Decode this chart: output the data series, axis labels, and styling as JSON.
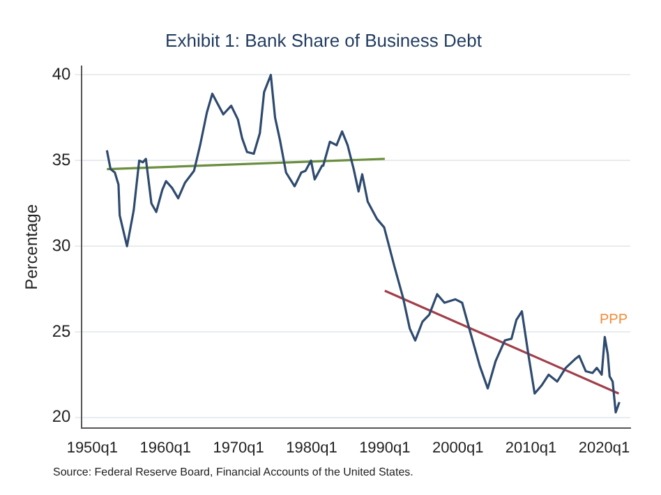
{
  "chart_data": {
    "type": "line",
    "title": "Exhibit 1: Bank Share of Business Debt",
    "ylabel": "Percentage",
    "xlim": [
      "1948-08",
      "2023-08"
    ],
    "xticks": [
      {
        "value": "1950-01",
        "label": "1950q1"
      },
      {
        "value": "1960-01",
        "label": "1960q1"
      },
      {
        "value": "1970-01",
        "label": "1970q1"
      },
      {
        "value": "1980-01",
        "label": "1980q1"
      },
      {
        "value": "1990-01",
        "label": "1990q1"
      },
      {
        "value": "2000-01",
        "label": "2000q1"
      },
      {
        "value": "2010-01",
        "label": "2010q1"
      },
      {
        "value": "2020-01",
        "label": "2020q1"
      }
    ],
    "ylim": [
      19.4,
      40.5
    ],
    "yticks": [
      20,
      25,
      30,
      35,
      40
    ],
    "grid": "y",
    "legend": false,
    "marker": "none",
    "line_style": "solid",
    "series": [
      {
        "color": "#2e4a6e",
        "x": [
          "1952-01",
          "1952-07",
          "1953-02",
          "1953-08",
          "1953-10",
          "1954-10",
          "1955-09",
          "1956-06",
          "1956-12",
          "1957-05",
          "1958-02",
          "1958-10",
          "1959-08",
          "1960-02",
          "1960-12",
          "1961-10",
          "1962-09",
          "1963-12",
          "1964-10",
          "1965-09",
          "1966-06",
          "1967-03",
          "1967-12",
          "1969-01",
          "1969-12",
          "1970-07",
          "1971-03",
          "1972-02",
          "1972-12",
          "1973-07",
          "1974-06",
          "1975-01",
          "1975-09",
          "1976-07",
          "1977-09",
          "1978-08",
          "1979-03",
          "1979-12",
          "1980-06",
          "1981-06",
          "1981-08",
          "1982-07",
          "1983-06",
          "1984-03",
          "1984-12",
          "1985-10",
          "1986-06",
          "1986-12",
          "1987-09",
          "1988-12",
          "1989-12",
          "1991-05",
          "1992-07",
          "1993-06",
          "1994-03",
          "1995-03",
          "1996-02",
          "1997-03",
          "1998-03",
          "1999-09",
          "2000-08",
          "2001-10",
          "2003-01",
          "2004-02",
          "2005-03",
          "2006-06",
          "2007-05",
          "2008-01",
          "2008-10",
          "2009-09",
          "2010-07",
          "2011-07",
          "2012-06",
          "2013-08",
          "2014-10",
          "2016-01",
          "2016-08",
          "2017-07",
          "2018-06",
          "2019-01",
          "2019-09",
          "2020-02",
          "2020-07",
          "2020-10",
          "2021-03",
          "2021-08",
          "2022-02"
        ],
        "values": [
          35.6,
          34.5,
          34.3,
          33.6,
          31.8,
          30.0,
          32.1,
          35.0,
          34.9,
          35.1,
          32.5,
          32.0,
          33.3,
          33.8,
          33.4,
          32.8,
          33.7,
          34.4,
          35.9,
          37.8,
          38.9,
          38.3,
          37.7,
          38.2,
          37.4,
          36.3,
          35.5,
          35.4,
          36.6,
          39.0,
          40.0,
          37.5,
          36.2,
          34.3,
          33.5,
          34.3,
          34.4,
          35.0,
          33.9,
          34.7,
          34.7,
          36.1,
          35.9,
          36.7,
          35.9,
          34.5,
          33.2,
          34.2,
          32.6,
          31.6,
          31.1,
          28.8,
          27.0,
          25.2,
          24.5,
          25.6,
          26.0,
          27.2,
          26.7,
          26.9,
          26.7,
          24.9,
          23.0,
          21.7,
          23.3,
          24.5,
          24.6,
          25.7,
          26.2,
          23.6,
          21.4,
          21.9,
          22.5,
          22.1,
          22.9,
          23.4,
          23.6,
          22.7,
          22.6,
          22.9,
          22.5,
          24.7,
          23.7,
          22.4,
          22.1,
          20.3,
          20.9
        ]
      },
      {
        "type": "line",
        "color": "#6b8e3e",
        "x": [
          "1952-01",
          "1990-01"
        ],
        "values": [
          34.5,
          35.1
        ]
      },
      {
        "type": "line",
        "color": "#a0404a",
        "x": [
          "1990-01",
          "2022-01"
        ],
        "values": [
          27.4,
          21.4
        ]
      }
    ],
    "annotations": [
      "PPP",
      "Source: Federal Reserve Board, Financial Accounts of the United States."
    ]
  }
}
